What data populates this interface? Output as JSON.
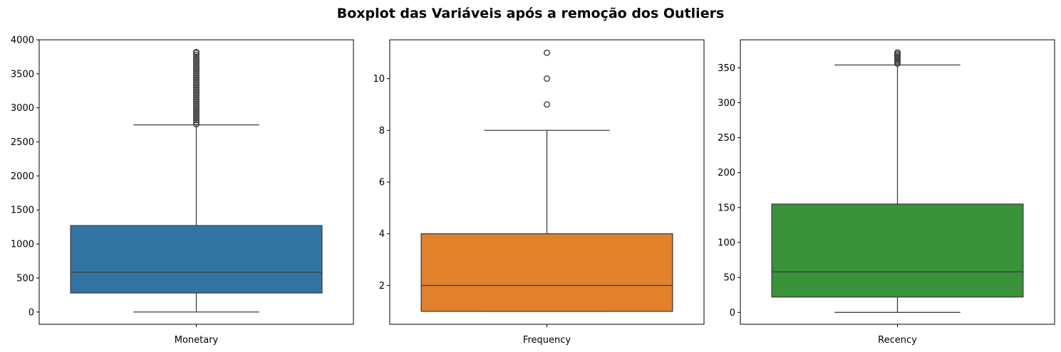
{
  "suptitle": "Boxplot das Variáveis após a remoção dos Outliers",
  "chart_data": [
    {
      "type": "box",
      "xlabel": "Monetary",
      "color": "#3274a1",
      "ylim": [
        -180,
        4000
      ],
      "yticks": [
        0,
        500,
        1000,
        1500,
        2000,
        2500,
        3000,
        3500,
        4000
      ],
      "ytick_labels": [
        "0",
        "500",
        "1000",
        "1500",
        "2000",
        "2500",
        "3000",
        "3500",
        "4000"
      ],
      "whisker_low": 0,
      "q1": 280,
      "median": 585,
      "q3": 1270,
      "whisker_high": 2750,
      "outliers": [
        2760,
        2790,
        2820,
        2850,
        2880,
        2910,
        2940,
        2970,
        3000,
        3030,
        3060,
        3090,
        3120,
        3150,
        3180,
        3210,
        3240,
        3270,
        3300,
        3330,
        3360,
        3390,
        3420,
        3450,
        3480,
        3510,
        3540,
        3570,
        3600,
        3630,
        3660,
        3690,
        3720,
        3750,
        3780,
        3810,
        3820
      ]
    },
    {
      "type": "box",
      "xlabel": "Frequency",
      "color": "#e1812c",
      "ylim": [
        0.5,
        11.5
      ],
      "yticks": [
        2,
        4,
        6,
        8,
        10
      ],
      "ytick_labels": [
        "2",
        "4",
        "6",
        "8",
        "10"
      ],
      "whisker_low": 1,
      "q1": 1,
      "median": 2,
      "q3": 4,
      "whisker_high": 8,
      "outliers": [
        9,
        10,
        11
      ]
    },
    {
      "type": "box",
      "xlabel": "Recency",
      "color": "#3a923a",
      "ylim": [
        -17,
        390
      ],
      "yticks": [
        0,
        50,
        100,
        150,
        200,
        250,
        300,
        350
      ],
      "ytick_labels": [
        "0",
        "50",
        "100",
        "150",
        "200",
        "250",
        "300",
        "350"
      ],
      "whisker_low": 0,
      "q1": 22,
      "median": 58,
      "q3": 155,
      "whisker_high": 354,
      "outliers": [
        356,
        358,
        360,
        362,
        364,
        366,
        368,
        370,
        372
      ]
    }
  ]
}
